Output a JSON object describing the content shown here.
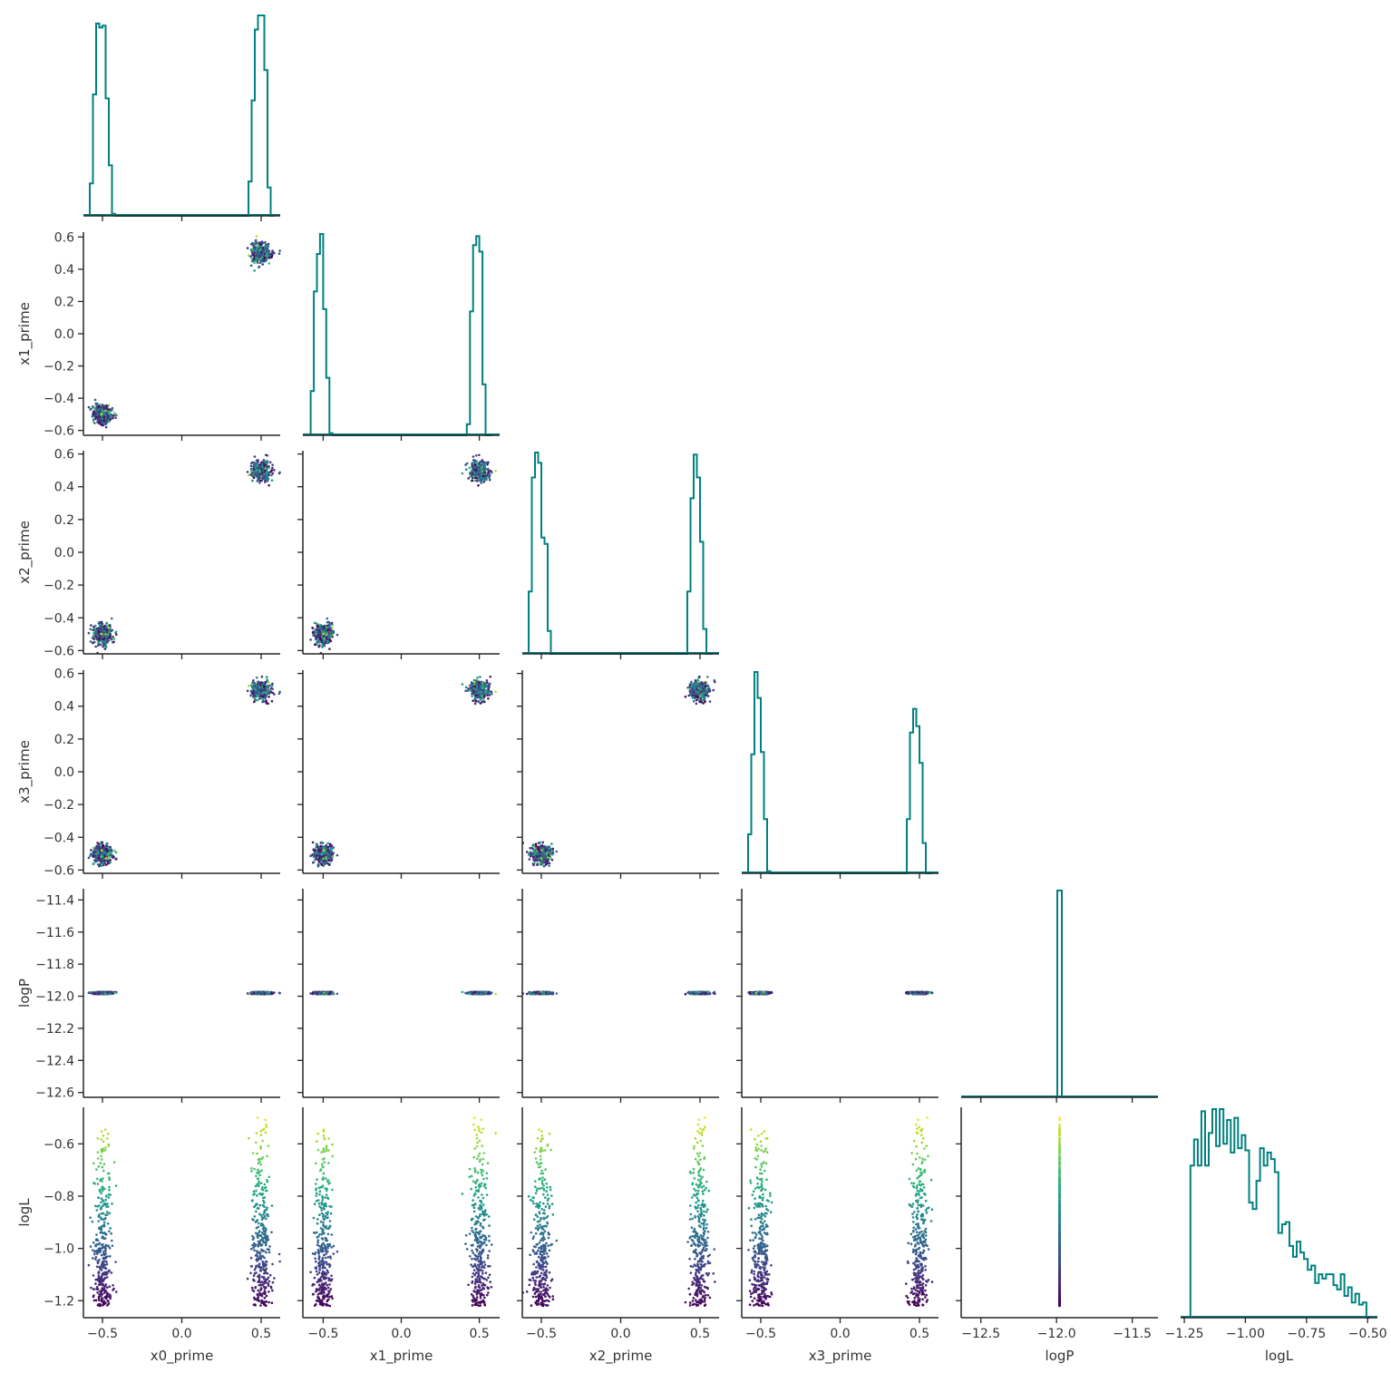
{
  "chart_data": {
    "type": "scatter",
    "title": "",
    "kind": "corner plot (pair plot, lower triangle, step histograms on diagonal)",
    "variables": [
      "x0_prime",
      "x1_prime",
      "x2_prime",
      "x3_prime",
      "logP",
      "logL"
    ],
    "ranges": {
      "x0_prime": [
        -0.62,
        0.62
      ],
      "x1_prime": [
        -0.63,
        0.63
      ],
      "x2_prime": [
        -0.62,
        0.62
      ],
      "x3_prime": [
        -0.62,
        0.62
      ],
      "logP": [
        -12.63,
        -11.33
      ],
      "logL": [
        -1.265,
        -0.46
      ]
    },
    "ticks": {
      "x0_prime": [
        -0.5,
        0.0,
        0.5
      ],
      "x1_prime": [
        -0.5,
        0.0,
        0.5
      ],
      "x2_prime": [
        -0.5,
        0.0,
        0.5
      ],
      "x3_prime": [
        -0.5,
        0.0,
        0.5
      ],
      "logP": [
        -12.5,
        -12.0,
        -11.5
      ],
      "logL": [
        -1.25,
        -1.0,
        -0.75,
        -0.5
      ]
    },
    "y_ticks": {
      "x1_prime": [
        -0.6,
        -0.4,
        -0.2,
        0.0,
        0.2,
        0.4,
        0.6
      ],
      "x2_prime": [
        -0.6,
        -0.4,
        -0.2,
        0.0,
        0.2,
        0.4,
        0.6
      ],
      "x3_prime": [
        -0.6,
        -0.4,
        -0.2,
        0.0,
        0.2,
        0.4,
        0.6
      ],
      "logP": [
        -12.6,
        -12.4,
        -12.2,
        -12.0,
        -11.8,
        -11.6,
        -11.4
      ],
      "logL": [
        -1.2,
        -1.0,
        -0.8,
        -0.6
      ]
    },
    "tick_labels": {
      "x": {
        "x0_prime": [
          "−0.5",
          "0.0",
          "0.5"
        ],
        "x1_prime": [
          "−0.5",
          "0.0",
          "0.5"
        ],
        "x2_prime": [
          "−0.5",
          "0.0",
          "0.5"
        ],
        "x3_prime": [
          "−0.5",
          "0.0",
          "0.5"
        ],
        "logP": [
          "−12.5",
          "−12.0",
          "−11.5"
        ],
        "logL": [
          "−1.25",
          "−1.00",
          "−0.75",
          "−0.50"
        ]
      },
      "y": {
        "x1_prime": [
          "−0.6",
          "−0.4",
          "−0.2",
          "0.0",
          "0.2",
          "0.4",
          "0.6"
        ],
        "x2_prime": [
          "−0.6",
          "−0.4",
          "−0.2",
          "0.0",
          "0.2",
          "0.4",
          "0.6"
        ],
        "x3_prime": [
          "−0.6",
          "−0.4",
          "−0.2",
          "0.0",
          "0.2",
          "0.4",
          "0.6"
        ],
        "logP": [
          "−12.6",
          "−12.4",
          "−12.2",
          "−12.0",
          "−11.8",
          "−11.6",
          "−11.4"
        ],
        "logL": [
          "−1.2",
          "−1.0",
          "−0.8",
          "−0.6"
        ]
      }
    },
    "modes": [
      {
        "x0_prime": -0.5,
        "x1_prime": -0.5,
        "x2_prime": -0.5,
        "x3_prime": -0.5,
        "spread": 0.03
      },
      {
        "x0_prime": 0.5,
        "x1_prime": 0.5,
        "x2_prime": 0.5,
        "x3_prime": 0.5,
        "spread": 0.03
      }
    ],
    "logP_value": -11.98,
    "logL_range": [
      -1.22,
      -0.48
    ],
    "colormap": "viridis (color encodes logL)",
    "histograms": {
      "x0_prime": {
        "edges": [
          -0.58,
          -0.56,
          -0.54,
          -0.52,
          -0.5,
          -0.48,
          -0.46,
          -0.44,
          -0.42,
          0.42,
          0.44,
          0.46,
          0.48,
          0.5,
          0.52,
          0.54,
          0.56,
          0.58
        ],
        "heights": [
          0.16,
          0.6,
          0.95,
          0.93,
          0.94,
          0.58,
          0.25,
          0.01,
          0,
          0.17,
          0.57,
          0.92,
          0.99,
          0.99,
          0.72,
          0.14,
          0
        ]
      },
      "x1_prime": {
        "edges": [
          -0.58,
          -0.56,
          -0.54,
          -0.52,
          -0.5,
          -0.48,
          -0.46,
          -0.44,
          -0.42,
          0.42,
          0.44,
          0.46,
          0.48,
          0.5,
          0.52,
          0.54,
          0.56,
          0.58
        ],
        "heights": [
          0.2,
          0.65,
          0.82,
          0.91,
          0.57,
          0.26,
          0.01,
          0,
          0,
          0.05,
          0.56,
          0.86,
          0.9,
          0.83,
          0.23,
          0,
          0
        ]
      },
      "x2_prime": {
        "edges": [
          -0.58,
          -0.56,
          -0.54,
          -0.52,
          -0.5,
          -0.48,
          -0.46,
          -0.44,
          -0.42,
          0.42,
          0.44,
          0.46,
          0.48,
          0.5,
          0.52,
          0.54,
          0.56,
          0.58
        ],
        "heights": [
          0.3,
          0.85,
          0.97,
          0.92,
          0.56,
          0.53,
          0.11,
          0,
          0,
          0.3,
          0.75,
          0.96,
          0.85,
          0.54,
          0.12,
          0,
          0
        ]
      },
      "x3_prime": {
        "edges": [
          -0.58,
          -0.56,
          -0.54,
          -0.52,
          -0.5,
          -0.48,
          -0.46,
          -0.44,
          -0.42,
          0.42,
          0.44,
          0.46,
          0.48,
          0.5,
          0.52,
          0.54,
          0.56,
          0.58
        ],
        "heights": [
          0.18,
          0.55,
          0.93,
          0.81,
          0.56,
          0.25,
          0.01,
          0,
          0,
          0.25,
          0.65,
          0.76,
          0.68,
          0.51,
          0.14,
          0,
          0
        ]
      },
      "logP": {
        "edges": [
          -11.995,
          -11.965
        ],
        "heights": [
          1.0
        ]
      },
      "logL": {
        "edges": [
          -1.225,
          -1.21,
          -1.195,
          -1.18,
          -1.165,
          -1.15,
          -1.135,
          -1.12,
          -1.105,
          -1.09,
          -1.075,
          -1.06,
          -1.045,
          -1.03,
          -1.015,
          -1.0,
          -0.985,
          -0.97,
          -0.955,
          -0.94,
          -0.925,
          -0.91,
          -0.895,
          -0.88,
          -0.865,
          -0.85,
          -0.835,
          -0.82,
          -0.805,
          -0.79,
          -0.775,
          -0.76,
          -0.745,
          -0.73,
          -0.715,
          -0.7,
          -0.685,
          -0.67,
          -0.655,
          -0.64,
          -0.625,
          -0.61,
          -0.595,
          -0.58,
          -0.565,
          -0.55,
          -0.535,
          -0.52,
          -0.505,
          -0.49
        ],
        "heights": [
          0.7,
          0.82,
          0.7,
          0.95,
          0.7,
          0.85,
          0.96,
          0.79,
          0.96,
          0.8,
          0.91,
          0.76,
          0.92,
          0.78,
          0.84,
          0.77,
          0.53,
          0.5,
          0.63,
          0.78,
          0.7,
          0.76,
          0.73,
          0.67,
          0.39,
          0.43,
          0.44,
          0.33,
          0.28,
          0.35,
          0.3,
          0.27,
          0.22,
          0.24,
          0.16,
          0.2,
          0.18,
          0.2,
          0.2,
          0.15,
          0.13,
          0.2,
          0.1,
          0.14,
          0.07,
          0.11,
          0.06,
          0.07,
          0.0
        ]
      }
    },
    "xlabel": [
      "x0_prime",
      "x1_prime",
      "x2_prime",
      "x3_prime",
      "logP",
      "logL"
    ],
    "ylabel": [
      "",
      "x1_prime",
      "x2_prime",
      "x3_prime",
      "logP",
      "logL"
    ],
    "grid": false,
    "legend": "none"
  },
  "colors": {
    "hist": "#00807f",
    "axis": "#262626",
    "text": "#333333",
    "viridis": [
      "#440154",
      "#482878",
      "#3e4989",
      "#31688e",
      "#26828e",
      "#1f9e89",
      "#35b779",
      "#6ece58",
      "#b5de2b",
      "#fde725"
    ]
  }
}
